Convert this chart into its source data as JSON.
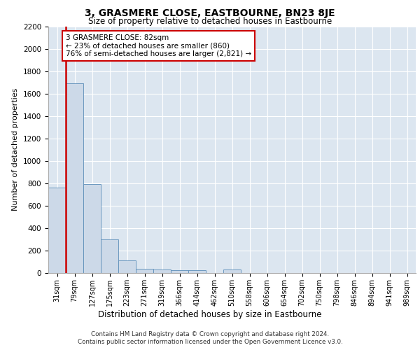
{
  "title": "3, GRASMERE CLOSE, EASTBOURNE, BN23 8JE",
  "subtitle": "Size of property relative to detached houses in Eastbourne",
  "dist_label": "Distribution of detached houses by size in Eastbourne",
  "ylabel": "Number of detached properties",
  "categories": [
    "31sqm",
    "79sqm",
    "127sqm",
    "175sqm",
    "223sqm",
    "271sqm",
    "319sqm",
    "366sqm",
    "414sqm",
    "462sqm",
    "510sqm",
    "558sqm",
    "606sqm",
    "654sqm",
    "702sqm",
    "750sqm",
    "798sqm",
    "846sqm",
    "894sqm",
    "941sqm",
    "989sqm"
  ],
  "values": [
    760,
    1690,
    790,
    300,
    110,
    40,
    30,
    25,
    25,
    0,
    30,
    0,
    0,
    0,
    0,
    0,
    0,
    0,
    0,
    0,
    0
  ],
  "bar_color": "#ccd9e8",
  "bar_edge_color": "#5b8db8",
  "property_line_color": "#cc0000",
  "property_line_index": 1,
  "annotation_text": "3 GRASMERE CLOSE: 82sqm\n← 23% of detached houses are smaller (860)\n76% of semi-detached houses are larger (2,821) →",
  "annotation_box_edgecolor": "#cc0000",
  "ylim": [
    0,
    2200
  ],
  "yticks": [
    0,
    200,
    400,
    600,
    800,
    1000,
    1200,
    1400,
    1600,
    1800,
    2000,
    2200
  ],
  "footer_line1": "Contains HM Land Registry data © Crown copyright and database right 2024.",
  "footer_line2": "Contains public sector information licensed under the Open Government Licence v3.0.",
  "background_color": "#ffffff",
  "plot_bg_color": "#dce6f0",
  "grid_color": "#ffffff"
}
